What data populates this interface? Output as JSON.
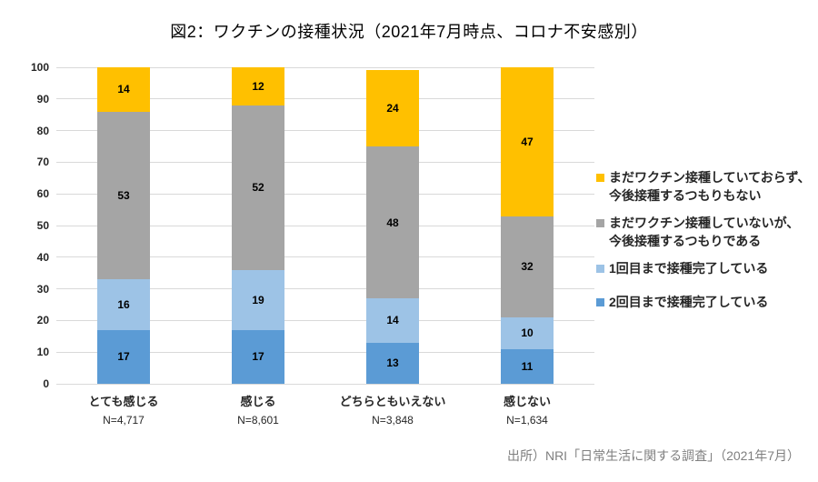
{
  "source_note": "出所）NRI「日常生活に関する調査」（2021年7月）",
  "chart_data": {
    "type": "bar",
    "stacked": true,
    "title": "図2：ワクチンの接種状況（2021年7月時点、コロナ不安感別）",
    "categories": [
      "とても感じる",
      "感じる",
      "どちらともいえない",
      "感じない"
    ],
    "category_sublabels": [
      "N=4,717",
      "N=8,601",
      "N=3,848",
      "N=1,634"
    ],
    "series": [
      {
        "name": "2回目まで接種完了している",
        "color": "#5B9BD5",
        "values": [
          17,
          17,
          13,
          11
        ]
      },
      {
        "name": "1回目まで接種完了している",
        "color": "#9DC3E6",
        "values": [
          16,
          19,
          14,
          10
        ]
      },
      {
        "name": "まだワクチン接種していないが、今後接種するつもりである",
        "color": "#A5A5A5",
        "values": [
          53,
          52,
          48,
          32
        ]
      },
      {
        "name": "まだワクチン接種していておらず、今後接種するつもりもない",
        "color": "#FFC000",
        "values": [
          14,
          12,
          24,
          47
        ]
      }
    ],
    "legend": [
      {
        "color": "#FFC000",
        "lines": [
          "まだワクチン接種していておらず、",
          "今後接種するつもりもない"
        ]
      },
      {
        "color": "#A5A5A5",
        "lines": [
          "まだワクチン接種していないが、",
          "今後接種するつもりである"
        ]
      },
      {
        "color": "#9DC3E6",
        "lines": [
          "1回目まで接種完了している"
        ]
      },
      {
        "color": "#5B9BD5",
        "lines": [
          "2回目まで接種完了している"
        ]
      }
    ],
    "ylim": [
      0,
      100
    ],
    "ytick_step": 10,
    "grid": true,
    "legend_position": "right",
    "colors": {
      "grid": "#D9D9D9",
      "axis_text": "#262626",
      "source_text": "#7F7F7F"
    }
  }
}
